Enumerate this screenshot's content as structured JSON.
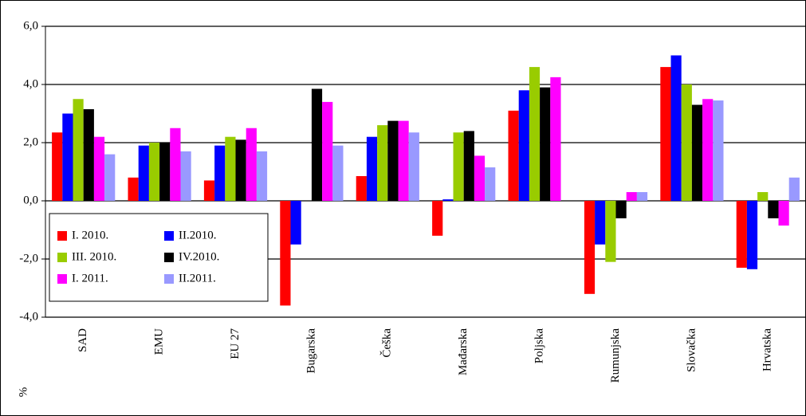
{
  "chart_data": {
    "type": "bar",
    "categories": [
      "SAD",
      "EMU",
      "EU 27",
      "Bugarska",
      "Češka",
      "Mađarska",
      "Poljska",
      "Rumunjska",
      "Slovačka",
      "Hrvatska"
    ],
    "series": [
      {
        "name": "I. 2010.",
        "color": "#ff0000",
        "values": [
          2.35,
          0.8,
          0.7,
          -3.6,
          0.85,
          -1.2,
          3.1,
          -3.2,
          4.6,
          -2.3
        ]
      },
      {
        "name": "II.2010.",
        "color": "#0000ff",
        "values": [
          3.0,
          1.9,
          1.9,
          -1.5,
          2.2,
          0.05,
          3.8,
          -1.5,
          5.0,
          -2.35
        ]
      },
      {
        "name": "III. 2010.",
        "color": "#99cc00",
        "values": [
          3.5,
          2.0,
          2.2,
          null,
          2.6,
          2.35,
          4.6,
          -2.1,
          4.0,
          0.3
        ]
      },
      {
        "name": "IV.2010.",
        "color": "#000000",
        "values": [
          3.15,
          2.0,
          2.1,
          3.85,
          2.75,
          2.4,
          3.9,
          -0.6,
          3.3,
          -0.6
        ]
      },
      {
        "name": "I. 2011.",
        "color": "#ff00ff",
        "values": [
          2.2,
          2.5,
          2.5,
          3.4,
          2.75,
          1.55,
          4.25,
          0.3,
          3.5,
          -0.85
        ]
      },
      {
        "name": "II.2011.",
        "color": "#9999ff",
        "values": [
          1.6,
          1.7,
          1.7,
          1.9,
          2.35,
          1.15,
          null,
          0.3,
          3.45,
          0.8
        ]
      }
    ],
    "ylabel": "%",
    "ylim": [
      -4,
      6
    ],
    "yticks": [
      {
        "value": -4,
        "label": "-4,0"
      },
      {
        "value": -2,
        "label": "-2,0"
      },
      {
        "value": 0,
        "label": "0,0"
      },
      {
        "value": 2,
        "label": "2,0"
      },
      {
        "value": 4,
        "label": "4,0"
      },
      {
        "value": 6,
        "label": "6,0"
      }
    ],
    "grid": true,
    "legend": "lower left"
  }
}
